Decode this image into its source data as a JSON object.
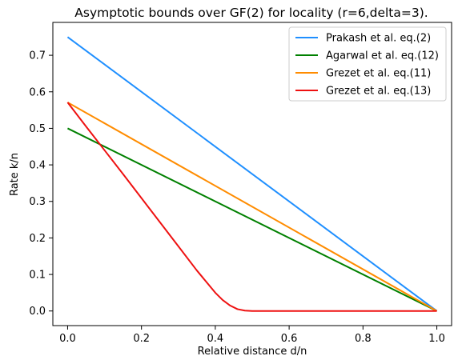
{
  "chart_data": {
    "type": "line",
    "title": "Asymptotic bounds over GF(2) for locality (r=6,delta=3).",
    "xlabel": "Relative distance d/n",
    "ylabel": "Rate k/n",
    "xlim": [
      -0.04,
      1.04
    ],
    "ylim": [
      -0.04,
      0.79
    ],
    "xticks": [
      0.0,
      0.2,
      0.4,
      0.6,
      0.8,
      1.0
    ],
    "xtick_labels": [
      "0.0",
      "0.2",
      "0.4",
      "0.6",
      "0.8",
      "1.0"
    ],
    "yticks": [
      0.0,
      0.1,
      0.2,
      0.3,
      0.4,
      0.5,
      0.6,
      0.7
    ],
    "ytick_labels": [
      "0.0",
      "0.1",
      "0.2",
      "0.3",
      "0.4",
      "0.5",
      "0.6",
      "0.7"
    ],
    "grid": false,
    "legend": "top-right",
    "series": [
      {
        "name": "Prakash et al. eq.(2)",
        "color": "#1f8fff",
        "x": [
          0.0,
          1.0
        ],
        "y": [
          0.75,
          0.0
        ]
      },
      {
        "name": "Agarwal et al. eq.(12)",
        "color": "#008000",
        "x": [
          0.0,
          1.0
        ],
        "y": [
          0.5,
          0.0
        ]
      },
      {
        "name": "Grezet et al. eq.(11)",
        "color": "#ff8c00",
        "x": [
          0.0,
          1.0
        ],
        "y": [
          0.571,
          0.0
        ]
      },
      {
        "name": "Grezet et al. eq.(13)",
        "color": "#ee1111",
        "x": [
          0.0,
          0.05,
          0.1,
          0.15,
          0.2,
          0.25,
          0.3,
          0.35,
          0.4,
          0.42,
          0.44,
          0.46,
          0.48,
          0.5,
          0.6,
          0.7,
          0.8,
          0.9,
          1.0
        ],
        "y": [
          0.571,
          0.505,
          0.44,
          0.375,
          0.309,
          0.243,
          0.177,
          0.111,
          0.05,
          0.03,
          0.015,
          0.005,
          0.001,
          0.0,
          0.0,
          0.0,
          0.0,
          0.0,
          0.0
        ]
      }
    ]
  }
}
